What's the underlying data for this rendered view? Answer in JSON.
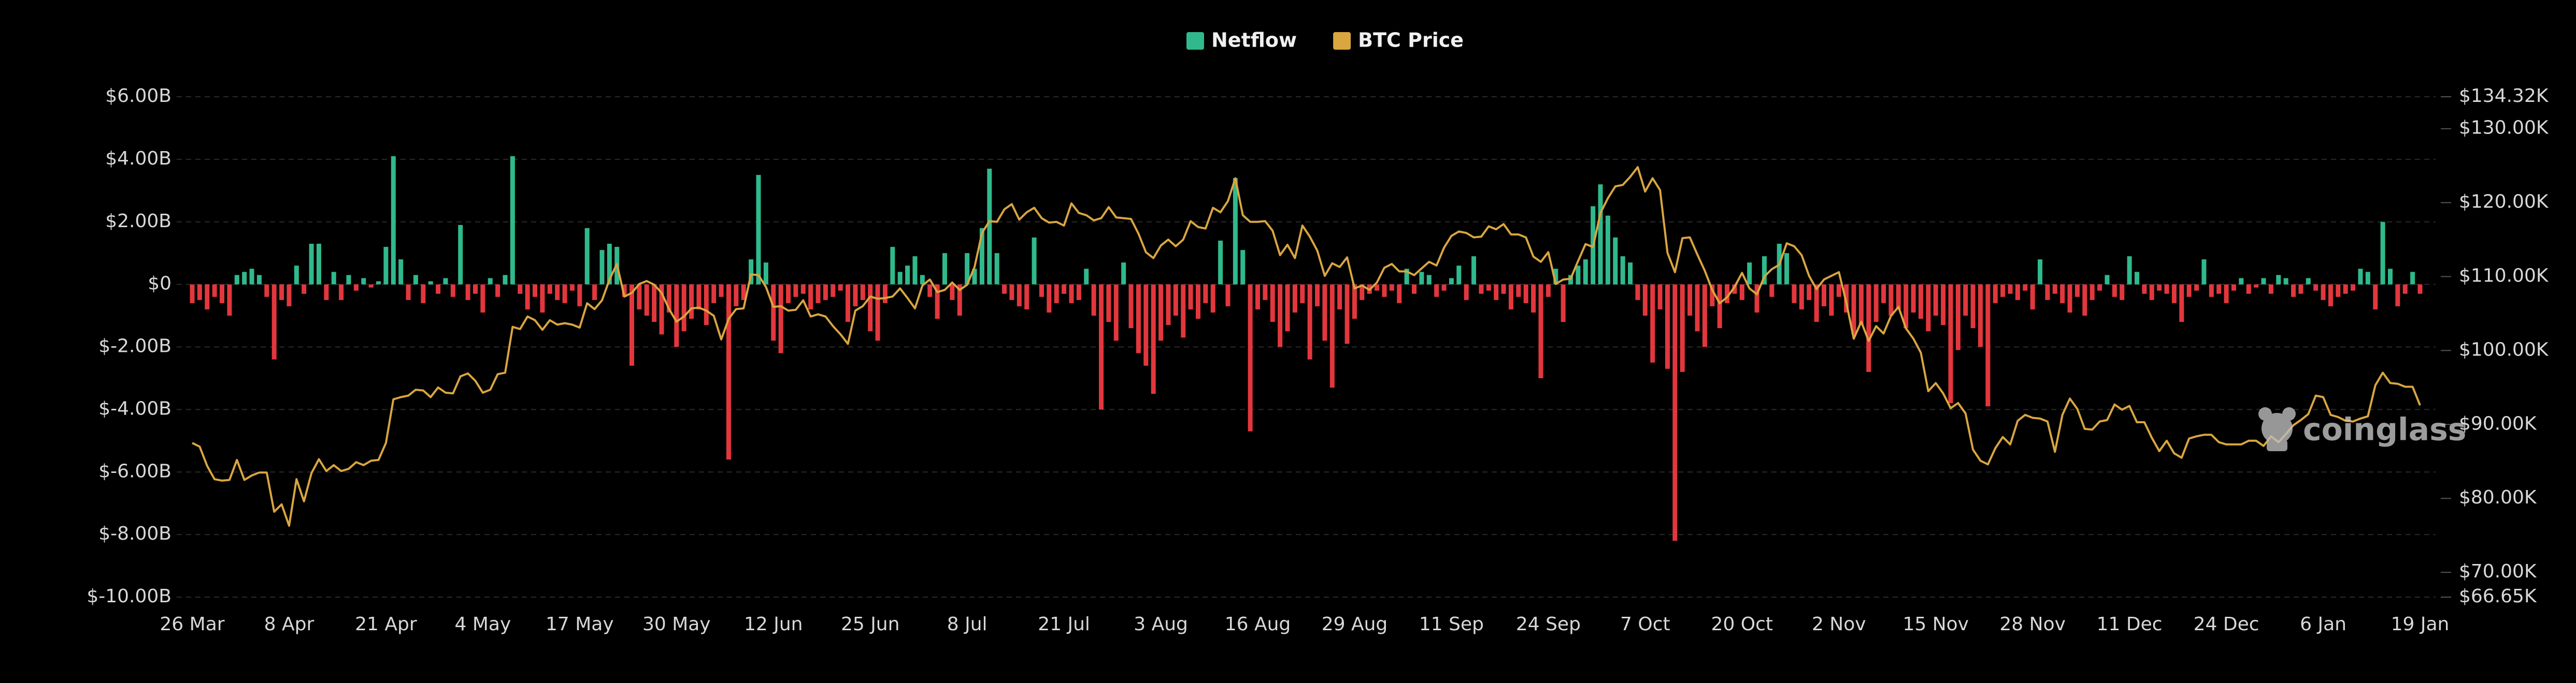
{
  "chart_data": {
    "type": "bar",
    "watermark": "coinglass",
    "categories": [
      "26 Mar",
      null,
      null,
      null,
      null,
      null,
      null,
      null,
      null,
      null,
      null,
      null,
      null,
      "8 Apr",
      null,
      null,
      null,
      null,
      null,
      null,
      null,
      null,
      null,
      null,
      null,
      null,
      "21 Apr",
      null,
      null,
      null,
      null,
      null,
      null,
      null,
      null,
      null,
      null,
      null,
      null,
      "4 May",
      null,
      null,
      null,
      null,
      null,
      null,
      null,
      null,
      null,
      null,
      null,
      null,
      "17 May",
      null,
      null,
      null,
      null,
      null,
      null,
      null,
      null,
      null,
      null,
      null,
      null,
      "30 May",
      null,
      null,
      null,
      null,
      null,
      null,
      null,
      null,
      null,
      null,
      null,
      null,
      "12 Jun",
      null,
      null,
      null,
      null,
      null,
      null,
      null,
      null,
      null,
      null,
      null,
      null,
      "25 Jun",
      null,
      null,
      null,
      null,
      null,
      null,
      null,
      null,
      null,
      null,
      null,
      null,
      "8 Jul",
      null,
      null,
      null,
      null,
      null,
      null,
      null,
      null,
      null,
      null,
      null,
      null,
      "21 Jul",
      null,
      null,
      null,
      null,
      null,
      null,
      null,
      null,
      null,
      null,
      null,
      null,
      "3 Aug",
      null,
      null,
      null,
      null,
      null,
      null,
      null,
      null,
      null,
      null,
      null,
      null,
      "16 Aug",
      null,
      null,
      null,
      null,
      null,
      null,
      null,
      null,
      null,
      null,
      null,
      null,
      "29 Aug",
      null,
      null,
      null,
      null,
      null,
      null,
      null,
      null,
      null,
      null,
      null,
      null,
      "11 Sep",
      null,
      null,
      null,
      null,
      null,
      null,
      null,
      null,
      null,
      null,
      null,
      null,
      "24 Sep",
      null,
      null,
      null,
      null,
      null,
      null,
      null,
      null,
      null,
      null,
      null,
      null,
      "7 Oct",
      null,
      null,
      null,
      null,
      null,
      null,
      null,
      null,
      null,
      null,
      null,
      null,
      "20 Oct",
      null,
      null,
      null,
      null,
      null,
      null,
      null,
      null,
      null,
      null,
      null,
      null,
      "2 Nov",
      null,
      null,
      null,
      null,
      null,
      null,
      null,
      null,
      null,
      null,
      null,
      null,
      "15 Nov",
      null,
      null,
      null,
      null,
      null,
      null,
      null,
      null,
      null,
      null,
      null,
      null,
      "28 Nov",
      null,
      null,
      null,
      null,
      null,
      null,
      null,
      null,
      null,
      null,
      null,
      null,
      "11 Dec",
      null,
      null,
      null,
      null,
      null,
      null,
      null,
      null,
      null,
      null,
      null,
      null,
      "24 Dec",
      null,
      null,
      null,
      null,
      null,
      null,
      null,
      null,
      null,
      null,
      null,
      null,
      "6 Jan",
      null,
      null,
      null,
      null,
      null,
      null,
      null,
      null,
      null,
      null,
      null,
      null,
      "19 Jan"
    ],
    "series": [
      {
        "name": "Netflow",
        "type": "bar",
        "color": "#2fb98c",
        "negative_color": "#e2373d",
        "values": [
          -0.6,
          -0.5,
          -0.8,
          -0.4,
          -0.6,
          -1.0,
          0.3,
          0.4,
          0.5,
          0.3,
          -0.4,
          -2.4,
          -0.5,
          -0.7,
          0.6,
          -0.3,
          1.3,
          1.3,
          -0.5,
          0.4,
          -0.5,
          0.3,
          -0.2,
          0.2,
          -0.1,
          0.1,
          1.2,
          4.1,
          0.8,
          -0.5,
          0.3,
          -0.6,
          0.1,
          -0.3,
          0.2,
          -0.4,
          1.9,
          -0.5,
          -0.3,
          -0.9,
          0.2,
          -0.4,
          0.3,
          4.1,
          -0.3,
          -0.8,
          -0.4,
          -0.9,
          -0.3,
          -0.5,
          -0.6,
          -0.2,
          -0.7,
          1.8,
          -0.5,
          1.1,
          1.3,
          1.2,
          -0.4,
          -2.6,
          -0.8,
          -1.0,
          -1.2,
          -1.6,
          -0.9,
          -2.0,
          -1.5,
          -1.1,
          -0.8,
          -1.3,
          -0.6,
          -0.4,
          -5.6,
          -0.7,
          -0.5,
          0.8,
          3.5,
          0.7,
          -1.8,
          -2.2,
          -0.6,
          -0.4,
          -0.3,
          -0.8,
          -0.6,
          -0.5,
          -0.4,
          -0.2,
          -1.2,
          -0.7,
          -0.5,
          -1.5,
          -1.8,
          -0.6,
          1.2,
          0.4,
          0.6,
          0.9,
          0.3,
          -0.4,
          -1.1,
          1.0,
          -0.5,
          -1.0,
          1.0,
          0.5,
          1.8,
          3.7,
          1.0,
          -0.3,
          -0.5,
          -0.7,
          -0.8,
          1.5,
          -0.4,
          -0.9,
          -0.6,
          -0.3,
          -0.6,
          -0.5,
          0.5,
          -1.0,
          -4.0,
          -1.2,
          -1.8,
          0.7,
          -1.4,
          -2.2,
          -2.6,
          -3.5,
          -1.8,
          -1.3,
          -1.0,
          -1.7,
          -0.8,
          -1.1,
          -0.6,
          -0.9,
          1.4,
          -0.7,
          3.4,
          1.1,
          -4.7,
          -0.8,
          -0.5,
          -1.2,
          -2.0,
          -1.5,
          -0.9,
          -0.6,
          -2.4,
          -0.7,
          -1.8,
          -3.3,
          -0.8,
          -1.9,
          -1.1,
          -0.5,
          -0.3,
          -0.2,
          -0.4,
          -0.2,
          -0.6,
          0.5,
          -0.3,
          0.4,
          0.3,
          -0.4,
          -0.2,
          0.2,
          0.6,
          -0.5,
          0.9,
          -0.3,
          -0.2,
          -0.5,
          -0.3,
          -0.8,
          -0.4,
          -0.6,
          -0.9,
          -3.0,
          -0.4,
          0.5,
          -1.2,
          0.3,
          0.6,
          0.8,
          2.5,
          3.2,
          2.2,
          1.5,
          0.9,
          0.7,
          -0.5,
          -1.0,
          -2.5,
          -0.8,
          -2.7,
          -8.2,
          -2.8,
          -1.0,
          -1.5,
          -2.0,
          -0.7,
          -1.4,
          -0.6,
          -0.3,
          -0.5,
          0.7,
          -0.9,
          0.9,
          -0.4,
          1.3,
          1.0,
          -0.6,
          -0.8,
          -0.5,
          -1.2,
          -0.7,
          -1.0,
          -0.4,
          -0.9,
          -1.6,
          -1.3,
          -2.8,
          -1.2,
          -0.6,
          -1.0,
          -0.8,
          -1.4,
          -0.9,
          -1.1,
          -1.5,
          -1.0,
          -1.3,
          -3.8,
          -2.1,
          -1.0,
          -1.4,
          -2.0,
          -3.9,
          -0.6,
          -0.4,
          -0.3,
          -0.5,
          -0.2,
          -0.8,
          0.8,
          -0.5,
          -0.3,
          -0.6,
          -0.9,
          -0.4,
          -1.0,
          -0.5,
          -0.2,
          0.3,
          -0.4,
          -0.5,
          0.9,
          0.4,
          -0.3,
          -0.5,
          -0.2,
          -0.3,
          -0.6,
          -1.2,
          -0.4,
          -0.2,
          0.8,
          -0.4,
          -0.3,
          -0.6,
          -0.2,
          0.2,
          -0.3,
          -0.1,
          0.2,
          -0.3,
          0.3,
          0.2,
          -0.4,
          -0.3,
          0.2,
          -0.2,
          -0.5,
          -0.7,
          -0.4,
          -0.3,
          -0.2,
          0.5,
          0.4,
          -0.8,
          2.0,
          0.5,
          -0.7,
          -0.3,
          0.4,
          -0.3
        ]
      },
      {
        "name": "BTC Price",
        "type": "line",
        "axis": "y2",
        "color": "#d9a640",
        "values": [
          87.5,
          87.0,
          84.4,
          82.6,
          82.4,
          82.5,
          85.2,
          82.5,
          83.1,
          83.5,
          83.5,
          78.2,
          79.2,
          76.3,
          82.6,
          79.6,
          83.4,
          85.3,
          83.7,
          84.5,
          83.7,
          84.0,
          84.9,
          84.5,
          85.1,
          85.2,
          87.5,
          93.4,
          93.7,
          93.9,
          94.7,
          94.6,
          93.7,
          95.0,
          94.3,
          94.2,
          96.5,
          96.9,
          95.9,
          94.3,
          94.7,
          96.8,
          97.0,
          103.2,
          102.9,
          104.6,
          104.1,
          102.8,
          104.1,
          103.5,
          103.7,
          103.5,
          103.1,
          106.4,
          105.6,
          106.8,
          109.6,
          111.7,
          107.3,
          107.8,
          109.0,
          109.4,
          108.9,
          107.8,
          105.6,
          103.9,
          104.6,
          105.7,
          105.8,
          105.4,
          104.7,
          101.5,
          104.3,
          105.6,
          105.7,
          110.3,
          110.2,
          108.6,
          105.9,
          106.0,
          105.4,
          105.5,
          106.8,
          104.6,
          104.9,
          104.6,
          103.3,
          102.2,
          100.9,
          105.4,
          106.0,
          107.3,
          107.0,
          107.1,
          107.3,
          108.4,
          107.1,
          105.7,
          108.8,
          109.6,
          107.9,
          108.2,
          109.2,
          108.2,
          108.9,
          111.3,
          115.9,
          117.5,
          117.4,
          119.1,
          119.8,
          117.7,
          118.7,
          119.3,
          117.9,
          117.3,
          117.4,
          116.9,
          119.9,
          118.6,
          118.3,
          117.6,
          117.9,
          119.4,
          118.0,
          117.9,
          117.8,
          115.8,
          113.3,
          112.5,
          114.2,
          115.0,
          114.1,
          115.0,
          117.5,
          116.7,
          116.5,
          119.3,
          118.7,
          120.2,
          123.3,
          118.3,
          117.4,
          117.4,
          117.5,
          116.2,
          112.9,
          114.3,
          112.5,
          116.9,
          115.4,
          113.5,
          110.1,
          111.8,
          111.3,
          112.6,
          108.4,
          108.8,
          108.2,
          109.2,
          111.2,
          111.7,
          110.7,
          110.7,
          110.2,
          111.1,
          112.0,
          111.5,
          113.9,
          115.5,
          116.1,
          115.9,
          115.3,
          115.4,
          116.8,
          116.4,
          117.1,
          115.7,
          115.7,
          115.3,
          112.7,
          112.0,
          113.3,
          109.0,
          109.6,
          109.7,
          112.1,
          114.4,
          114.0,
          118.6,
          120.6,
          122.2,
          122.4,
          123.5,
          124.8,
          121.5,
          123.3,
          121.7,
          113.2,
          110.6,
          115.2,
          115.3,
          113.0,
          110.8,
          108.2,
          106.4,
          107.2,
          108.6,
          110.5,
          108.4,
          107.6,
          110.0,
          111.0,
          111.6,
          114.5,
          114.1,
          112.9,
          110.1,
          108.3,
          109.6,
          110.1,
          110.6,
          106.5,
          101.6,
          103.9,
          101.3,
          103.3,
          102.3,
          104.7,
          105.9,
          103.0,
          101.6,
          99.7,
          94.5,
          95.6,
          94.2,
          92.2,
          92.9,
          91.5,
          86.6,
          85.1,
          84.6,
          86.8,
          88.3,
          87.3,
          90.5,
          91.3,
          90.9,
          90.8,
          90.4,
          86.3,
          91.3,
          93.5,
          92.1,
          89.4,
          89.3,
          90.4,
          90.6,
          92.7,
          92.0,
          92.5,
          90.3,
          90.3,
          88.2,
          86.4,
          87.8,
          86.1,
          85.5,
          88.1,
          88.4,
          88.6,
          88.6,
          87.6,
          87.3,
          87.3,
          87.3,
          87.8,
          87.8,
          87.1,
          88.4,
          87.6,
          88.7,
          89.9,
          90.6,
          91.4,
          93.9,
          93.7,
          91.3,
          91.0,
          90.5,
          90.4,
          90.8,
          91.1,
          95.3,
          97.0,
          95.6,
          95.5,
          95.1,
          95.1,
          92.6
        ]
      }
    ],
    "ylim": [
      -10,
      6
    ],
    "yticks": [
      {
        "value": 6,
        "label": "$6.00B"
      },
      {
        "value": 4,
        "label": "$4.00B"
      },
      {
        "value": 2,
        "label": "$2.00B"
      },
      {
        "value": 0,
        "label": "$0"
      },
      {
        "value": -2,
        "label": "$-2.00B"
      },
      {
        "value": -4,
        "label": "$-4.00B"
      },
      {
        "value": -6,
        "label": "$-6.00B"
      },
      {
        "value": -8,
        "label": "$-8.00B"
      },
      {
        "value": -10,
        "label": "$-10.00B"
      }
    ],
    "y2lim": [
      66.65,
      134.32
    ],
    "y2ticks": [
      {
        "value": 134.32,
        "label": "$134.32K"
      },
      {
        "value": 130,
        "label": "$130.00K"
      },
      {
        "value": 120,
        "label": "$120.00K"
      },
      {
        "value": 110,
        "label": "$110.00K"
      },
      {
        "value": 100,
        "label": "$100.00K"
      },
      {
        "value": 90,
        "label": "$90.00K"
      },
      {
        "value": 80,
        "label": "$80.00K"
      },
      {
        "value": 70,
        "label": "$70.00K"
      },
      {
        "value": 66.65,
        "label": "$66.65K"
      }
    ],
    "grid": true,
    "legend": "top"
  }
}
